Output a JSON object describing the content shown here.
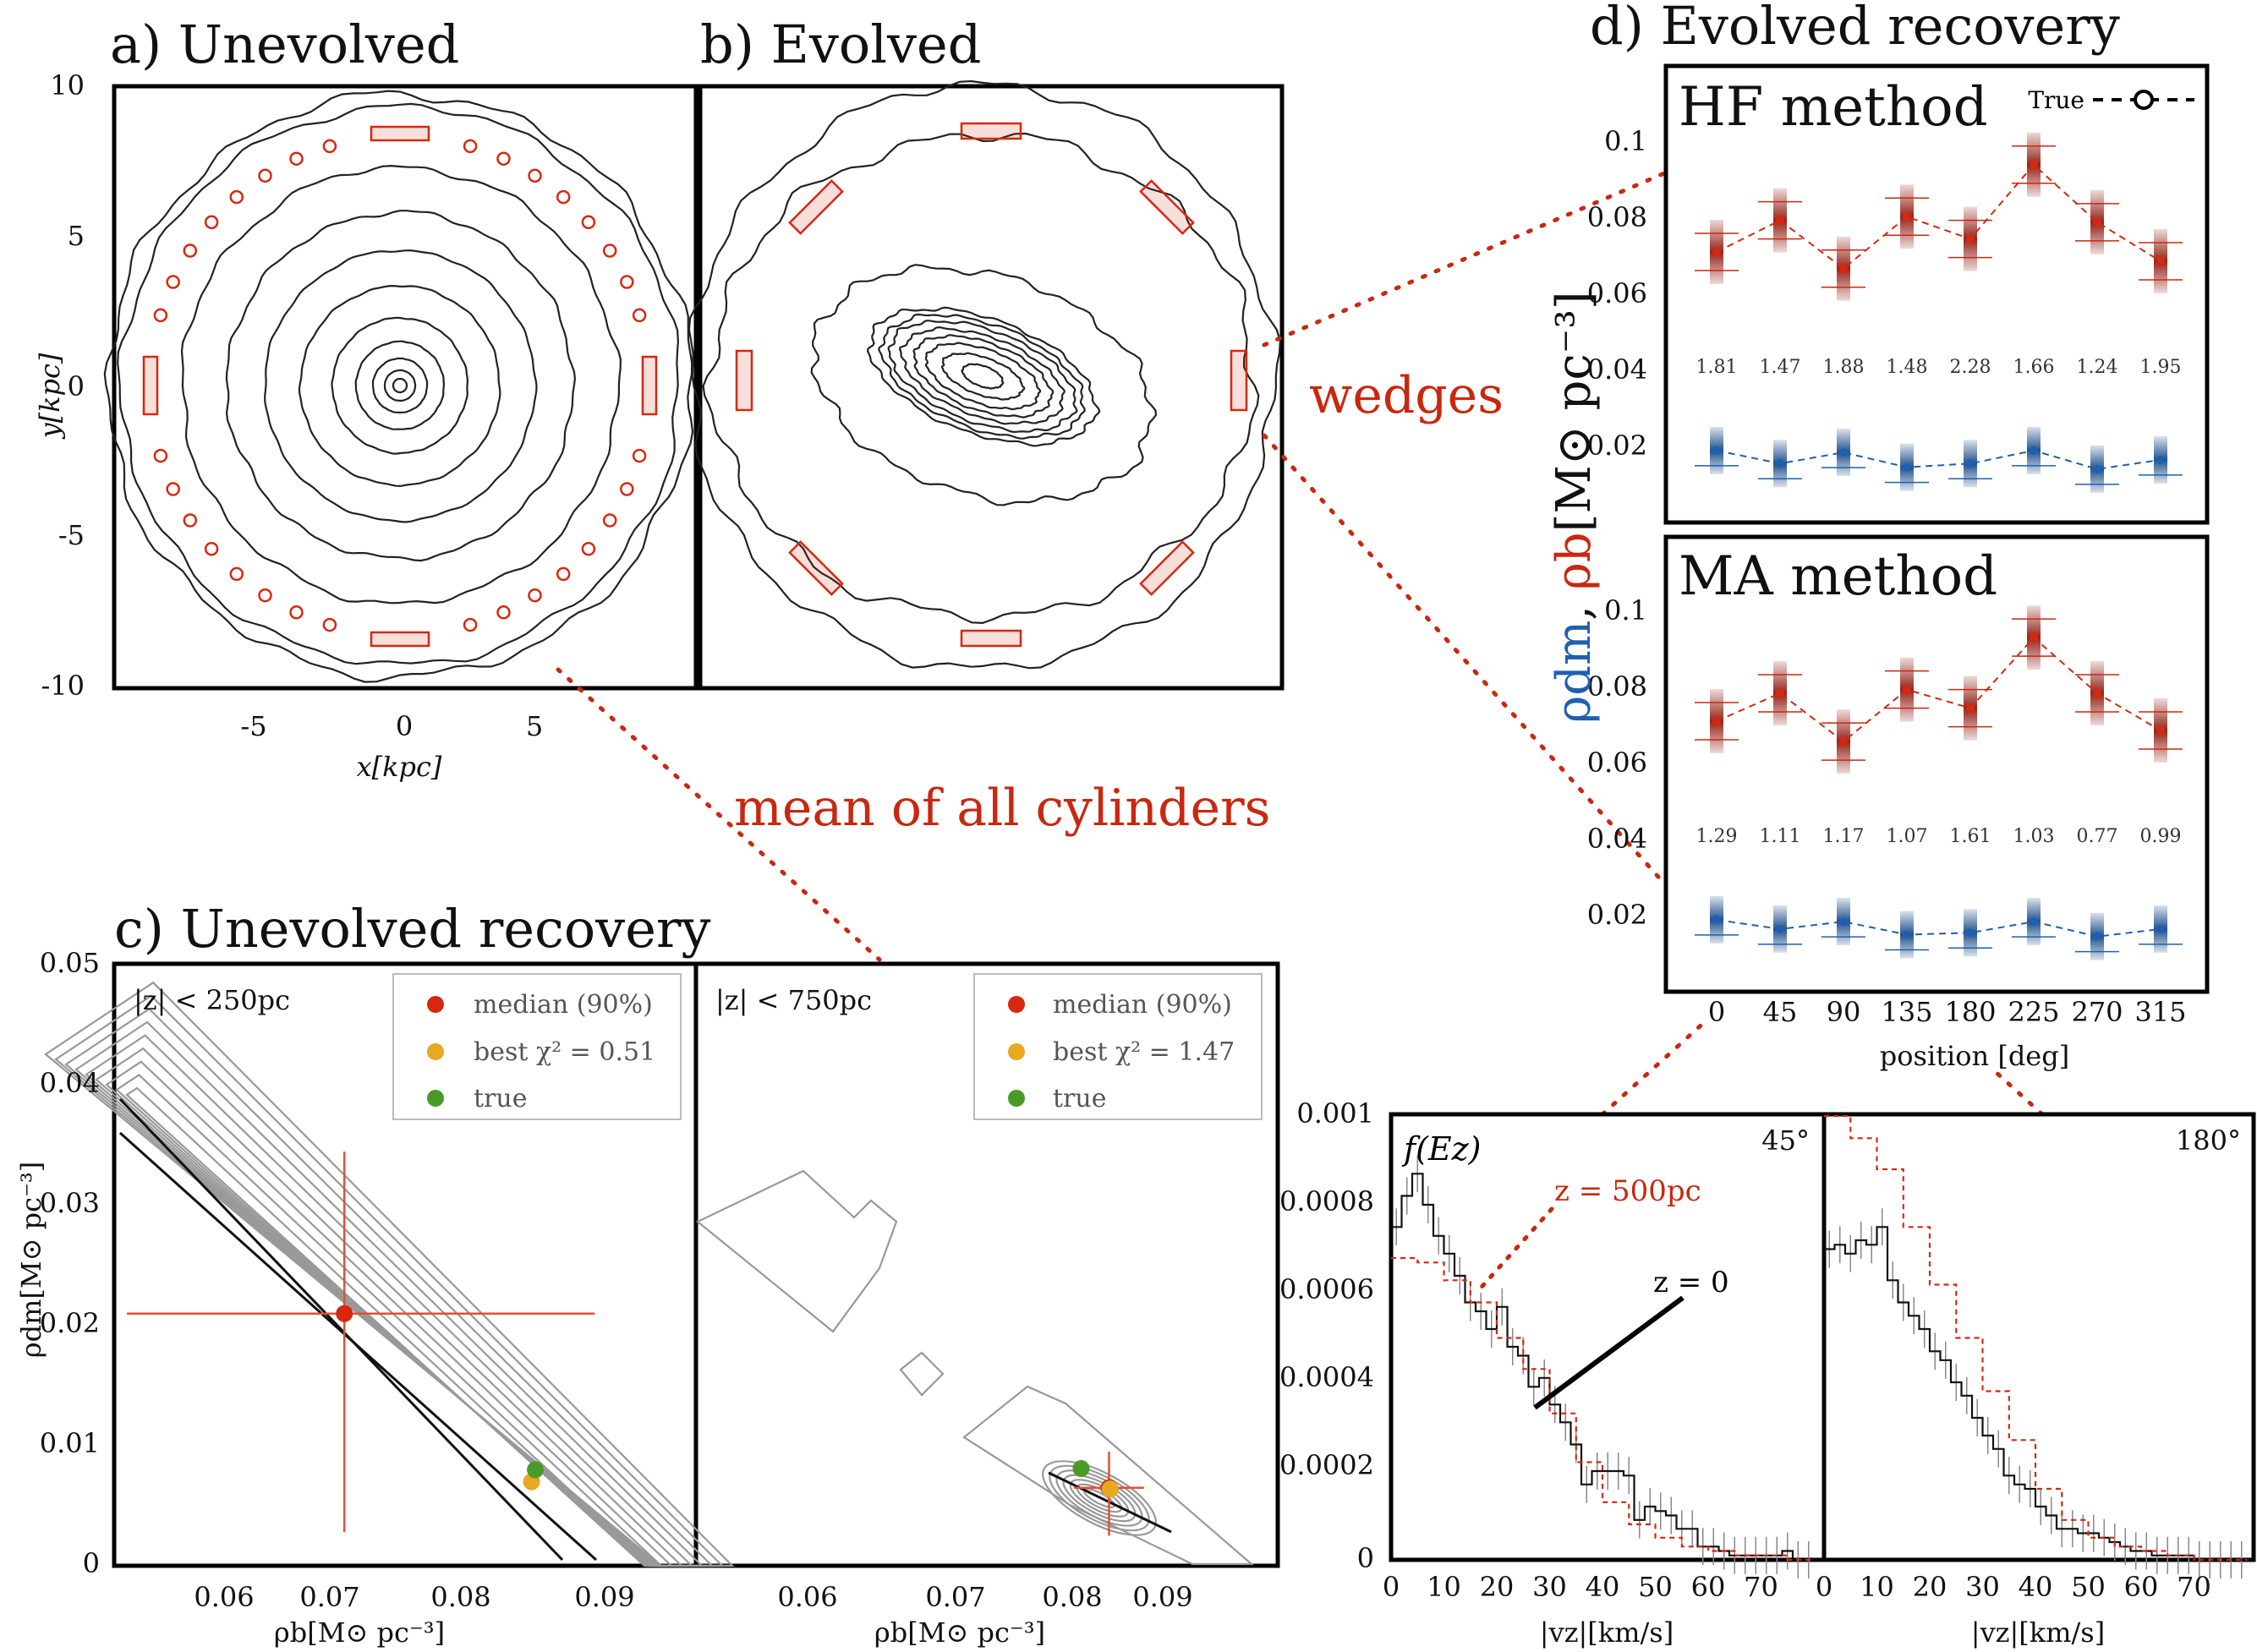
{
  "panels": {
    "a": {
      "title": "a) Unevolved",
      "xlabel": "x[kpc]",
      "ylabel": "y[kpc]",
      "xticks": [
        "-5",
        "0",
        "5"
      ],
      "yticks": [
        "10",
        "5",
        "0",
        "-5",
        "-10"
      ]
    },
    "b": {
      "title": "b) Evolved"
    },
    "c": {
      "title": "c) Unevolved recovery",
      "left": {
        "zlabel": "|z| < 250pc",
        "leg_median": "median (90%)",
        "leg_best": "best χ² = 0.51",
        "leg_true": "true"
      },
      "right": {
        "zlabel": "|z| < 750pc",
        "leg_median": "median (90%)",
        "leg_best": "best χ² = 1.47",
        "leg_true": "true"
      },
      "xlabel": "ρb[M⊙ pc⁻³]",
      "ylabel": "ρdm[M⊙ pc⁻³]",
      "xticks": [
        "0.06",
        "0.07",
        "0.08",
        "0.09"
      ],
      "yticks": [
        "0.05",
        "0.04",
        "0.03",
        "0.02",
        "0.01",
        "0"
      ]
    },
    "d": {
      "title": "d) Evolved recovery",
      "hf": "HF method",
      "ma": "MA method",
      "true_label": "True",
      "ylabel_dm": "ρdm",
      "ylabel_sep": ", ",
      "ylabel_b": "ρb",
      "ylabel_units": "[M⊙ pc⁻³]",
      "xlabel": "position [deg]",
      "xticks": [
        "0",
        "45",
        "90",
        "135",
        "180",
        "225",
        "270",
        "315"
      ],
      "yticks": [
        "0.1",
        "0.08",
        "0.06",
        "0.04",
        "0.02"
      ]
    },
    "e": {
      "flabel": "f(Ez)",
      "left_angle": "45°",
      "right_angle": "180°",
      "z500": "z = 500pc",
      "z0": "z = 0",
      "xlabel": "|vz|[km/s]",
      "yticks": [
        "0.001",
        "0.0008",
        "0.0006",
        "0.0004",
        "0.0002",
        "0"
      ],
      "xticks_left": [
        "0",
        "10",
        "20",
        "30",
        "40",
        "50",
        "60",
        "70"
      ],
      "xticks_right": [
        "0",
        "10",
        "20",
        "30",
        "40",
        "50",
        "60",
        "70"
      ]
    }
  },
  "annotations": {
    "wedges": "wedges",
    "mean": "mean of all cylinders"
  },
  "colors": {
    "baryon": "#c8280f",
    "dm": "#1f5fb0",
    "true": "#4a9a2a",
    "best": "#e8a820",
    "median": "#d62810"
  },
  "chart_data": [
    {
      "type": "scatter",
      "name": "c-left",
      "xlim": [
        0.05,
        0.096
      ],
      "ylim": [
        0,
        0.05
      ],
      "median": {
        "x": 0.0682,
        "y": 0.021,
        "xerr": [
          0.051,
          0.088
        ],
        "yerr": [
          0.0028,
          0.0345
        ]
      },
      "best": {
        "x": 0.083,
        "y": 0.007
      },
      "true": {
        "x": 0.0833,
        "y": 0.008
      }
    },
    {
      "type": "scatter",
      "name": "c-right",
      "xlim": [
        0.05,
        0.1
      ],
      "ylim": [
        0,
        0.05
      ],
      "median": {
        "x": 0.0855,
        "y": 0.0065,
        "xerr": [
          0.0825,
          0.0885
        ],
        "yerr": [
          0.0025,
          0.0095
        ]
      },
      "best": {
        "x": 0.0856,
        "y": 0.0064
      },
      "true": {
        "x": 0.0831,
        "y": 0.0081
      }
    },
    {
      "type": "line",
      "name": "HF method",
      "x": [
        0,
        45,
        90,
        135,
        180,
        225,
        270,
        315
      ],
      "ylim": [
        0,
        0.115
      ],
      "series": [
        {
          "name": "ρb",
          "values": [
            0.0665,
            0.075,
            0.062,
            0.076,
            0.07,
            0.09,
            0.0745,
            0.064
          ]
        },
        {
          "name": "ρdm",
          "values": [
            0.013,
            0.0095,
            0.0125,
            0.0085,
            0.0095,
            0.013,
            0.008,
            0.0105
          ]
        }
      ],
      "numbers": [
        "1.81",
        "1.47",
        "1.88",
        "1.48",
        "2.28",
        "1.66",
        "1.24",
        "1.95"
      ]
    },
    {
      "type": "line",
      "name": "MA method",
      "x": [
        0,
        45,
        90,
        135,
        180,
        225,
        270,
        315
      ],
      "ylim": [
        0,
        0.115
      ],
      "series": [
        {
          "name": "ρb",
          "values": [
            0.0665,
            0.074,
            0.061,
            0.075,
            0.07,
            0.089,
            0.074,
            0.064
          ]
        },
        {
          "name": "ρdm",
          "values": [
            0.013,
            0.0105,
            0.0125,
            0.009,
            0.0095,
            0.0125,
            0.0085,
            0.0105
          ]
        }
      ],
      "numbers": [
        "1.29",
        "1.11",
        "1.17",
        "1.07",
        "1.61",
        "1.03",
        "0.77",
        "0.99"
      ]
    },
    {
      "type": "line",
      "name": "f(Ez) 45",
      "xlim": [
        0,
        80
      ],
      "ylim": [
        0,
        0.001
      ],
      "series": [
        {
          "name": "z = 0",
          "x": [
            0,
            2,
            4,
            6,
            8,
            10,
            12,
            14,
            16,
            18,
            20,
            22,
            24,
            26,
            28,
            30,
            32,
            34,
            36,
            38,
            40,
            42,
            44,
            46,
            48,
            50,
            52,
            54,
            56,
            58,
            60,
            62,
            64,
            66,
            68,
            70,
            72,
            74,
            76,
            78
          ],
          "values": [
            0.00075,
            0.00082,
            0.00087,
            0.0008,
            0.00073,
            0.00069,
            0.00064,
            0.00058,
            0.00056,
            0.00052,
            0.00057,
            0.00048,
            0.00046,
            0.00039,
            0.00041,
            0.00035,
            0.00031,
            0.00026,
            0.00017,
            0.0002,
            0.0002,
            0.0002,
            0.00019,
            9e-05,
            0.00012,
            0.00011,
            0.0001,
            7e-05,
            7e-05,
            3e-05,
            3e-05,
            2e-05,
            1e-05,
            1e-05,
            1e-05,
            1e-05,
            1e-05,
            2e-05,
            0,
            0
          ]
        },
        {
          "name": "z = 500pc",
          "x": [
            0,
            5,
            10,
            15,
            20,
            25,
            30,
            35,
            40,
            45,
            50,
            55,
            60,
            65,
            70,
            75
          ],
          "values": [
            0.00068,
            0.00067,
            0.00063,
            0.00058,
            0.0005,
            0.00043,
            0.00033,
            0.00022,
            0.00013,
            8e-05,
            5e-05,
            3e-05,
            2e-05,
            1e-05,
            1e-05,
            0
          ]
        }
      ]
    },
    {
      "type": "line",
      "name": "f(Ez) 180",
      "xlim": [
        0,
        80
      ],
      "ylim": [
        0,
        0.001
      ],
      "series": [
        {
          "name": "z = 0",
          "x": [
            0,
            2,
            4,
            6,
            8,
            10,
            12,
            14,
            16,
            18,
            20,
            22,
            24,
            26,
            28,
            30,
            32,
            34,
            36,
            38,
            40,
            42,
            44,
            46,
            48,
            50,
            52,
            54,
            56,
            58,
            60,
            62,
            64,
            66,
            68,
            70,
            72,
            74,
            76,
            78
          ],
          "values": [
            0.0007,
            0.00071,
            0.00069,
            0.00072,
            0.00071,
            0.00075,
            0.00063,
            0.00058,
            0.00055,
            0.00052,
            0.00047,
            0.00045,
            0.0004,
            0.00037,
            0.00032,
            0.00028,
            0.00025,
            0.00019,
            0.00017,
            0.00016,
            0.00012,
            0.0001,
            7e-05,
            7e-05,
            6e-05,
            6e-05,
            5e-05,
            4e-05,
            3e-05,
            2e-05,
            2e-05,
            1e-05,
            1e-05,
            1e-05,
            1e-05,
            0,
            0,
            0,
            0,
            0
          ]
        },
        {
          "name": "z = 500pc",
          "x": [
            0,
            5,
            10,
            15,
            20,
            25,
            30,
            35,
            40,
            45,
            50,
            55,
            60,
            65,
            70,
            75
          ],
          "values": [
            0.001,
            0.00095,
            0.00088,
            0.00075,
            0.00062,
            0.0005,
            0.00038,
            0.00027,
            0.00016,
            9e-05,
            5e-05,
            3e-05,
            2e-05,
            1e-05,
            0,
            0
          ]
        }
      ]
    }
  ]
}
